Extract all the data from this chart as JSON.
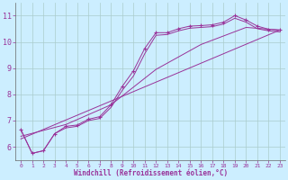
{
  "xlabel": "Windchill (Refroidissement éolien,°C)",
  "background_color": "#cceeff",
  "line_color": "#993399",
  "grid_color": "#aacccc",
  "xlim": [
    -0.5,
    23.5
  ],
  "ylim": [
    5.5,
    11.5
  ],
  "yticks": [
    6,
    7,
    8,
    9,
    10,
    11
  ],
  "xticks": [
    0,
    1,
    2,
    3,
    4,
    5,
    6,
    7,
    8,
    9,
    10,
    11,
    12,
    13,
    14,
    15,
    16,
    17,
    18,
    19,
    20,
    21,
    22,
    23
  ],
  "lines": [
    {
      "x": [
        0,
        1,
        2,
        3,
        4,
        5,
        6,
        7,
        8,
        9,
        10,
        11,
        12,
        13,
        14,
        15,
        16,
        17,
        18,
        19,
        20,
        21,
        22,
        23
      ],
      "y": [
        6.65,
        5.75,
        5.85,
        6.5,
        6.78,
        6.83,
        7.05,
        7.15,
        7.6,
        8.3,
        8.9,
        9.75,
        10.35,
        10.35,
        10.5,
        10.6,
        10.62,
        10.65,
        10.75,
        11.0,
        10.83,
        10.6,
        10.48,
        10.45
      ],
      "marker": true
    },
    {
      "x": [
        0,
        23
      ],
      "y": [
        6.3,
        10.45
      ],
      "marker": false
    },
    {
      "x": [
        0,
        1,
        2,
        3,
        4,
        5,
        6,
        7,
        8,
        9,
        10,
        11,
        12,
        13,
        14,
        15,
        16,
        17,
        18,
        19,
        20,
        21,
        22,
        23
      ],
      "y": [
        6.65,
        5.75,
        5.85,
        6.5,
        6.72,
        6.78,
        7.0,
        7.08,
        7.5,
        8.15,
        8.7,
        9.55,
        10.25,
        10.28,
        10.42,
        10.52,
        10.55,
        10.58,
        10.68,
        10.9,
        10.75,
        10.5,
        10.42,
        10.38
      ],
      "marker": false
    },
    {
      "x": [
        0,
        4,
        8,
        12,
        16,
        20,
        23
      ],
      "y": [
        6.4,
        6.85,
        7.6,
        8.95,
        9.9,
        10.55,
        10.45
      ],
      "marker": false
    }
  ]
}
